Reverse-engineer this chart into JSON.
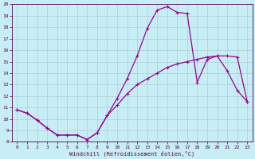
{
  "xlabel": "Windchill (Refroidissement éolien,°C)",
  "background_color": "#c8eef5",
  "grid_color": "#b0ccd4",
  "line_color": "#990099",
  "xlim": [
    -0.5,
    23.5
  ],
  "ylim": [
    8,
    20
  ],
  "xticks": [
    0,
    1,
    2,
    3,
    4,
    5,
    6,
    7,
    8,
    9,
    10,
    11,
    12,
    13,
    14,
    15,
    16,
    17,
    18,
    19,
    20,
    21,
    22,
    23
  ],
  "yticks": [
    8,
    9,
    10,
    11,
    12,
    13,
    14,
    15,
    16,
    17,
    18,
    19,
    20
  ],
  "line1_x": [
    0,
    1,
    2,
    3,
    4,
    5,
    6,
    7,
    8,
    9,
    10,
    11,
    12,
    13,
    14,
    15,
    16,
    17,
    18,
    19,
    20,
    21,
    22,
    23
  ],
  "line1_y": [
    10.8,
    10.5,
    9.9,
    9.2,
    8.6,
    8.6,
    8.6,
    8.2,
    8.8,
    10.3,
    11.2,
    12.2,
    13.0,
    13.5,
    14.0,
    14.5,
    14.8,
    15.0,
    15.2,
    15.4,
    15.5,
    15.5,
    15.4,
    11.5
  ],
  "line2_x": [
    0,
    1,
    2,
    3,
    4,
    5,
    6,
    7,
    8,
    9,
    10,
    11,
    12,
    13,
    14,
    15,
    16,
    17,
    18,
    19,
    20,
    21,
    22,
    23
  ],
  "line2_y": [
    10.8,
    10.5,
    9.9,
    9.2,
    8.6,
    8.6,
    8.6,
    8.2,
    8.8,
    10.3,
    11.8,
    13.5,
    15.5,
    17.9,
    19.5,
    19.8,
    19.3,
    19.2,
    13.2,
    15.2,
    15.5,
    14.2,
    12.5,
    11.5
  ]
}
